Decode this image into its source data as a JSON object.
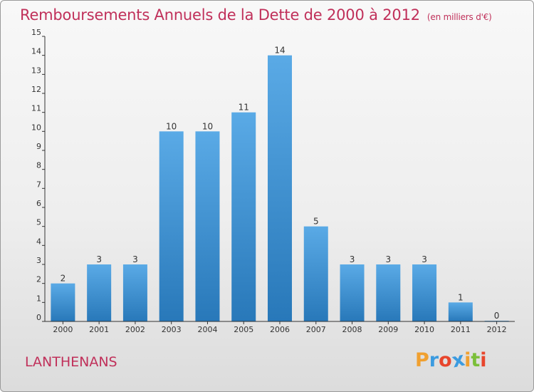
{
  "chart_data": {
    "type": "bar",
    "title": "Remboursements Annuels de la Dette de 2000 à 2012",
    "unit_note": "(en milliers d'€)",
    "categories": [
      "2000",
      "2001",
      "2002",
      "2003",
      "2004",
      "2005",
      "2006",
      "2007",
      "2008",
      "2009",
      "2010",
      "2011",
      "2012"
    ],
    "values": [
      2,
      3,
      3,
      10,
      10,
      11,
      14,
      5,
      3,
      3,
      3,
      1,
      0
    ],
    "data_labels": [
      "2",
      "3",
      "3",
      "10",
      "10",
      "11",
      "14",
      "5",
      "3",
      "3",
      "3",
      "1",
      "0"
    ],
    "ylim": [
      0,
      15
    ],
    "yticks": [
      0,
      1,
      2,
      3,
      4,
      5,
      6,
      7,
      8,
      9,
      10,
      11,
      12,
      13,
      14,
      15
    ],
    "xlabel": "",
    "ylabel": "",
    "grid": false,
    "bar_color_light": "#5aaae6",
    "bar_color_dark": "#2878b9"
  },
  "footer": {
    "commune": "LANTHENANS",
    "brand_letters": [
      "P",
      "r",
      "o",
      "x",
      "i",
      "t",
      "i"
    ],
    "brand_colors": [
      "#f0a030",
      "#3b9be0",
      "#e8452c",
      "#3b9be0",
      "#f0a030",
      "#7bbf3a",
      "#e8452c"
    ]
  },
  "colors": {
    "title": "#c0305a",
    "axis": "#333333"
  }
}
